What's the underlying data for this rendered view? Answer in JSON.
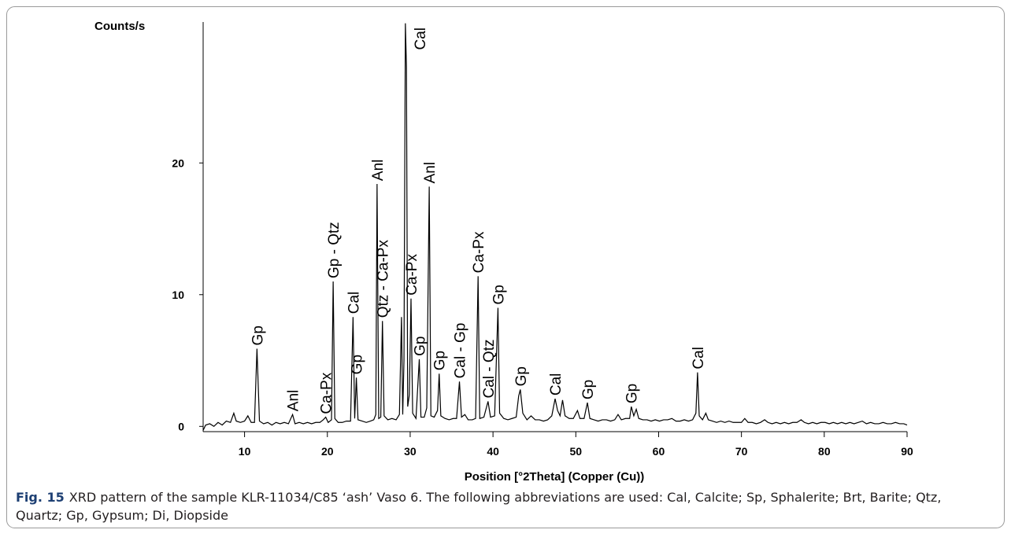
{
  "chart_data": {
    "type": "line",
    "ylabel": "Counts/s",
    "xlabel": "Position [°2Theta] (Copper (Cu))",
    "color": "#000000",
    "xlim": [
      5,
      90
    ],
    "xticks": [
      10,
      20,
      30,
      40,
      50,
      60,
      70,
      80,
      90
    ],
    "ylim": [
      -0.4,
      30.7
    ],
    "yticks": [
      0,
      10,
      20
    ],
    "x": [
      5.0,
      5.3,
      5.8,
      6.3,
      6.8,
      7.3,
      7.8,
      8.3,
      8.7,
      9.0,
      9.5,
      10.0,
      10.4,
      10.8,
      11.2,
      11.5,
      11.8,
      12.3,
      12.8,
      13.3,
      13.8,
      14.3,
      14.8,
      15.3,
      15.8,
      16.1,
      16.6,
      17.1,
      17.6,
      18.1,
      18.6,
      19.1,
      19.5,
      19.8,
      20.1,
      20.5,
      20.7,
      20.9,
      21.3,
      21.8,
      22.3,
      22.8,
      23.1,
      23.3,
      23.5,
      23.7,
      24.2,
      24.7,
      25.2,
      25.6,
      25.85,
      26.0,
      26.2,
      26.45,
      26.65,
      26.85,
      27.3,
      27.8,
      28.3,
      28.7,
      28.95,
      29.1,
      29.25,
      29.42,
      29.55,
      29.7,
      29.9,
      30.1,
      30.3,
      30.7,
      31.1,
      31.3,
      31.7,
      32.0,
      32.3,
      32.5,
      32.9,
      33.3,
      33.5,
      33.7,
      34.2,
      34.7,
      35.2,
      35.6,
      35.95,
      36.2,
      36.6,
      37.0,
      37.5,
      37.9,
      38.2,
      38.4,
      38.9,
      39.4,
      39.7,
      40.2,
      40.6,
      40.8,
      41.3,
      41.8,
      42.3,
      42.8,
      43.1,
      43.3,
      43.6,
      44.1,
      44.6,
      45.1,
      45.6,
      46.1,
      46.6,
      47.1,
      47.5,
      47.8,
      48.1,
      48.4,
      48.7,
      49.2,
      49.7,
      50.2,
      50.5,
      51.0,
      51.4,
      51.7,
      52.2,
      52.7,
      53.2,
      53.7,
      54.2,
      54.7,
      55.1,
      55.5,
      56.0,
      56.5,
      56.7,
      57.0,
      57.3,
      57.6,
      58.1,
      58.6,
      59.1,
      59.6,
      60.1,
      60.6,
      61.1,
      61.6,
      62.1,
      62.6,
      63.1,
      63.6,
      64.1,
      64.5,
      64.7,
      64.9,
      65.3,
      65.7,
      66.0,
      66.5,
      67.0,
      67.5,
      68.0,
      68.5,
      69.0,
      69.5,
      70.0,
      70.4,
      70.8,
      71.3,
      71.8,
      72.3,
      72.8,
      73.2,
      73.7,
      74.2,
      74.7,
      75.2,
      75.7,
      76.2,
      76.7,
      77.2,
      77.6,
      78.1,
      78.6,
      79.1,
      79.6,
      80.1,
      80.6,
      81.1,
      81.6,
      82.1,
      82.6,
      83.1,
      83.6,
      84.1,
      84.6,
      85.1,
      85.6,
      86.1,
      86.6,
      87.1,
      87.6,
      88.1,
      88.6,
      89.1,
      89.6,
      90.0
    ],
    "values": [
      -0.3,
      0.1,
      0.2,
      0.0,
      0.3,
      0.1,
      0.4,
      0.3,
      1.0,
      0.4,
      0.3,
      0.4,
      0.8,
      0.3,
      0.3,
      5.9,
      0.4,
      0.2,
      0.3,
      0.1,
      0.3,
      0.2,
      0.3,
      0.2,
      0.9,
      0.2,
      0.3,
      0.2,
      0.3,
      0.2,
      0.3,
      0.3,
      0.5,
      0.7,
      0.3,
      0.5,
      11.0,
      0.6,
      0.3,
      0.3,
      0.4,
      0.4,
      8.3,
      0.6,
      3.7,
      0.5,
      0.4,
      0.3,
      0.4,
      0.5,
      0.9,
      18.4,
      0.6,
      0.7,
      8.0,
      0.8,
      0.5,
      0.6,
      0.5,
      0.9,
      8.3,
      0.9,
      5.0,
      30.6,
      27.3,
      1.5,
      2.4,
      9.7,
      1.0,
      0.6,
      5.1,
      0.7,
      0.7,
      1.4,
      18.2,
      0.8,
      0.7,
      1.2,
      4.0,
      0.8,
      0.6,
      0.5,
      0.6,
      0.6,
      3.4,
      0.7,
      0.9,
      0.5,
      0.5,
      0.6,
      11.4,
      0.6,
      0.7,
      1.9,
      0.7,
      0.8,
      9.0,
      1.0,
      0.6,
      0.5,
      0.6,
      0.7,
      2.3,
      2.8,
      1.0,
      0.5,
      0.8,
      0.5,
      0.5,
      0.4,
      0.5,
      0.8,
      2.1,
      1.2,
      0.8,
      2.0,
      0.8,
      0.6,
      0.6,
      1.2,
      0.6,
      0.6,
      1.8,
      0.6,
      0.5,
      0.4,
      0.5,
      0.5,
      0.4,
      0.5,
      0.9,
      0.5,
      0.6,
      0.6,
      1.5,
      0.8,
      1.3,
      0.6,
      0.5,
      0.5,
      0.4,
      0.5,
      0.4,
      0.5,
      0.5,
      0.6,
      0.4,
      0.4,
      0.5,
      0.4,
      0.5,
      1.0,
      4.1,
      0.8,
      0.5,
      1.0,
      0.5,
      0.4,
      0.3,
      0.4,
      0.3,
      0.4,
      0.3,
      0.3,
      0.3,
      0.6,
      0.3,
      0.3,
      0.2,
      0.3,
      0.5,
      0.3,
      0.2,
      0.3,
      0.2,
      0.3,
      0.2,
      0.3,
      0.3,
      0.5,
      0.3,
      0.2,
      0.3,
      0.2,
      0.3,
      0.3,
      0.2,
      0.3,
      0.2,
      0.3,
      0.2,
      0.3,
      0.2,
      0.3,
      0.4,
      0.2,
      0.3,
      0.2,
      0.2,
      0.3,
      0.2,
      0.2,
      0.3,
      0.2,
      0.2,
      0.1
    ],
    "annotations": [
      {
        "text": "Gp",
        "x": 11.5
      },
      {
        "text": "Anl",
        "x": 15.8
      },
      {
        "text": "Ca-Px",
        "x": 19.8
      },
      {
        "text": "Gp - Qtz",
        "x": 20.7
      },
      {
        "text": "Cal",
        "x": 23.1
      },
      {
        "text": "Gp",
        "x": 23.5
      },
      {
        "text": "Anl",
        "x": 26.0
      },
      {
        "text": "Qtz - Ca-Px",
        "x": 26.65
      },
      {
        "text": "Cal",
        "x": 29.42
      },
      {
        "text": "Ca-Px",
        "x": 30.1
      },
      {
        "text": "Gp",
        "x": 31.1
      },
      {
        "text": "Anl",
        "x": 32.3
      },
      {
        "text": "Gp",
        "x": 33.5
      },
      {
        "text": "Cal - Gp",
        "x": 35.95
      },
      {
        "text": "Ca-Px",
        "x": 38.2
      },
      {
        "text": "Cal - Qtz",
        "x": 39.4
      },
      {
        "text": "Gp",
        "x": 40.6
      },
      {
        "text": "Gp",
        "x": 43.3
      },
      {
        "text": "Cal",
        "x": 47.5
      },
      {
        "text": "Gp",
        "x": 51.4
      },
      {
        "text": "Gp",
        "x": 56.7
      },
      {
        "text": "Cal",
        "x": 64.7
      }
    ]
  },
  "caption": {
    "label": "Fig. 15",
    "text": "XRD pattern of the sample KLR-11034/C85 ‘ash’ Vaso 6. The following abbreviations are used: Cal, Calcite; Sp, Sphalerite; Brt, Barite; Qtz, Quartz; Gp, Gypsum; Di, Diopside"
  }
}
